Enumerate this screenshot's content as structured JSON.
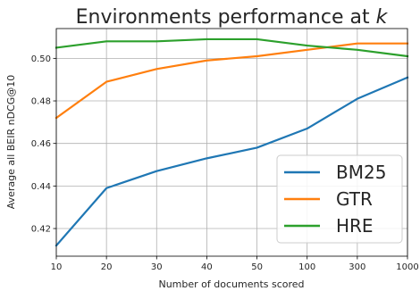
{
  "chart_data": {
    "type": "line",
    "title": "Environments performance at k",
    "title_text": "Environments performance at ",
    "title_var": "k",
    "xlabel": "Number of documents scored",
    "ylabel": "Average all BEIR nDCG@10",
    "categories": [
      "10",
      "20",
      "30",
      "40",
      "50",
      "100",
      "300",
      "1000"
    ],
    "ylim": [
      0.407,
      0.514
    ],
    "yticks": [
      0.42,
      0.44,
      0.46,
      0.48,
      0.5
    ],
    "ytick_labels": [
      "0.42",
      "0.44",
      "0.46",
      "0.48",
      "0.50"
    ],
    "grid": true,
    "legend_position": "lower-right",
    "series": [
      {
        "name": "BM25",
        "color": "#1f77b4",
        "values": [
          0.412,
          0.439,
          0.447,
          0.453,
          0.458,
          0.467,
          0.481,
          0.491
        ]
      },
      {
        "name": "GTR",
        "color": "#ff7f0e",
        "values": [
          0.472,
          0.489,
          0.495,
          0.499,
          0.501,
          0.504,
          0.507,
          0.507
        ]
      },
      {
        "name": "HRE",
        "color": "#2ca02c",
        "values": [
          0.505,
          0.508,
          0.508,
          0.509,
          0.509,
          0.506,
          0.504,
          0.501
        ]
      }
    ]
  }
}
